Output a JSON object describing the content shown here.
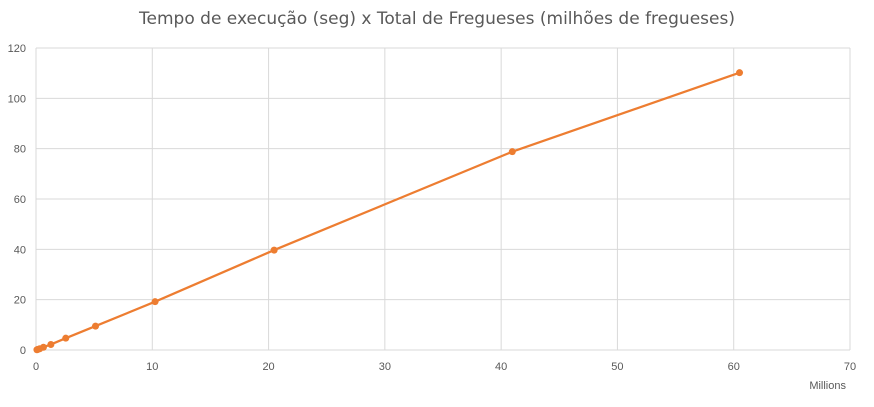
{
  "chart_data": {
    "type": "scatter",
    "title": "Tempo de execução (seg) x Total de Fregueses (milhões de fregueses)",
    "xlabel": "",
    "ylabel": "",
    "x_unit_label": "Millions",
    "xlim": [
      0,
      70
    ],
    "ylim": [
      0,
      120
    ],
    "x_ticks": [
      "0",
      "10",
      "20",
      "30",
      "40",
      "50",
      "60",
      "70"
    ],
    "y_ticks": [
      "0",
      "20",
      "40",
      "60",
      "80",
      "100",
      "120"
    ],
    "grid": true,
    "legend": "none",
    "series": [
      {
        "color": "#ED7D31",
        "x": [
          0.08,
          0.16,
          0.32,
          0.64,
          1.28,
          2.56,
          5.12,
          10.24,
          20.48,
          40.96,
          60.5
        ],
        "y": [
          0.1,
          0.25,
          0.5,
          1.1,
          2.2,
          4.7,
          9.5,
          19.2,
          39.7,
          78.8,
          110.2
        ]
      }
    ]
  }
}
